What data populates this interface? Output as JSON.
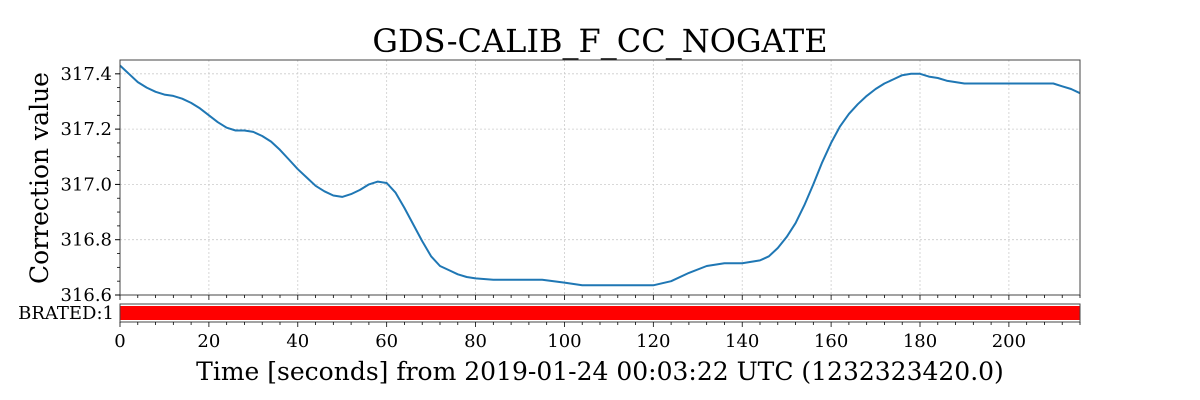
{
  "chart_data": {
    "type": "line",
    "title": "GDS-CALIB_F_CC_NOGATE",
    "xlabel": "Time [seconds] from 2019-01-24 00:03:22 UTC (1232323420.0)",
    "ylabel": "Correction value",
    "xlim": [
      0,
      216
    ],
    "ylim": [
      316.6,
      317.45
    ],
    "x_ticks": [
      0,
      20,
      40,
      60,
      80,
      100,
      120,
      140,
      160,
      180,
      200
    ],
    "y_ticks": [
      316.6,
      316.8,
      317.0,
      317.2,
      317.4
    ],
    "x_tick_labels": [
      "0",
      "20",
      "40",
      "60",
      "80",
      "100",
      "120",
      "140",
      "160",
      "180",
      "200"
    ],
    "y_tick_labels": [
      "316.6",
      "316.8",
      "317.0",
      "317.2",
      "317.4"
    ],
    "grid": true,
    "series": [
      {
        "color": "#1f77b4",
        "x": [
          0,
          2,
          4,
          6,
          8,
          10,
          12,
          14,
          16,
          18,
          20,
          22,
          24,
          26,
          28,
          30,
          32,
          34,
          36,
          38,
          40,
          42,
          44,
          46,
          48,
          50,
          52,
          54,
          56,
          58,
          60,
          62,
          64,
          66,
          68,
          70,
          72,
          74,
          76,
          78,
          80,
          84,
          88,
          92,
          95,
          100,
          104,
          108,
          112,
          116,
          120,
          124,
          128,
          132,
          136,
          140,
          144,
          146,
          148,
          150,
          152,
          154,
          156,
          158,
          160,
          162,
          164,
          166,
          168,
          170,
          172,
          174,
          176,
          178,
          180,
          182,
          184,
          186,
          188,
          190,
          192,
          196,
          200,
          204,
          208,
          210,
          212,
          214,
          216
        ],
        "y": [
          317.43,
          317.4,
          317.37,
          317.35,
          317.335,
          317.325,
          317.32,
          317.31,
          317.295,
          317.275,
          317.25,
          317.225,
          317.205,
          317.195,
          317.195,
          317.19,
          317.175,
          317.155,
          317.125,
          317.09,
          317.055,
          317.025,
          316.995,
          316.975,
          316.96,
          316.955,
          316.965,
          316.98,
          317.0,
          317.01,
          317.005,
          316.97,
          316.915,
          316.855,
          316.795,
          316.74,
          316.705,
          316.69,
          316.675,
          316.665,
          316.66,
          316.655,
          316.655,
          316.655,
          316.655,
          316.645,
          316.635,
          316.635,
          316.635,
          316.635,
          316.635,
          316.65,
          316.68,
          316.705,
          316.715,
          316.715,
          316.725,
          316.74,
          316.77,
          316.81,
          316.86,
          316.925,
          317.0,
          317.08,
          317.15,
          317.21,
          317.255,
          317.29,
          317.32,
          317.345,
          317.365,
          317.38,
          317.395,
          317.4,
          317.4,
          317.39,
          317.385,
          317.375,
          317.37,
          317.365,
          317.365,
          317.365,
          317.365,
          317.365,
          317.365,
          317.365,
          317.355,
          317.345,
          317.33
        ]
      }
    ],
    "segment_bar": {
      "label": "BRATED:1",
      "color": "#ff0000",
      "start": 0,
      "end": 216
    }
  }
}
